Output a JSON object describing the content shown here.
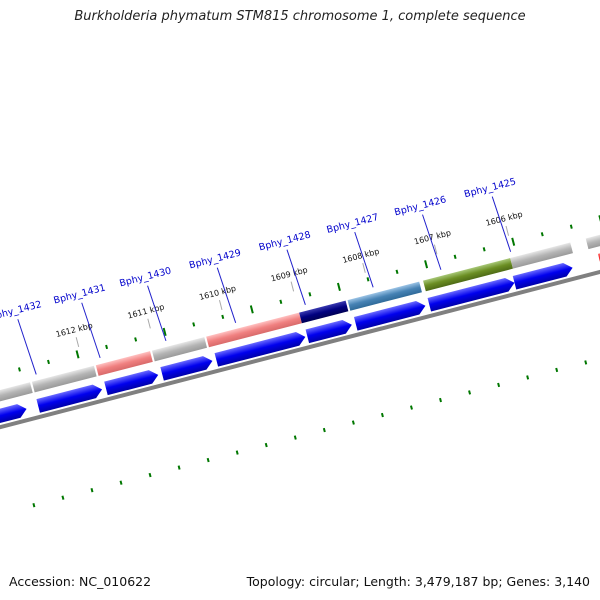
{
  "title": "Burkholderia phymatum STM815 chromosome 1, complete sequence",
  "footer": {
    "accession": "Accession: NC_010622",
    "summary": "Topology: circular; Length: 3,479,187 bp; Genes: 3,140"
  },
  "colors": {
    "gene_blue": "#0000ee",
    "gene_red": "#ee0000",
    "feature_gray": "#b4b4b4",
    "feature_pink": "#f08080",
    "feature_navy": "#000080",
    "feature_steelblue": "#4682b4",
    "feature_olive": "#6b8e23",
    "backbone": "#808080",
    "tick_green": "#007700",
    "label_blue": "#0000cc"
  },
  "loci": [
    "Bphy_1425",
    "Bphy_1426",
    "Bphy_1427",
    "Bphy_1428",
    "Bphy_1429",
    "Bphy_1430",
    "Bphy_1431",
    "Bphy_1432"
  ],
  "ticks": [
    "1606 kbp",
    "1607 kbp",
    "1608 kbp",
    "1609 kbp",
    "1610 kbp",
    "1611 kbp",
    "1612 kbp"
  ]
}
